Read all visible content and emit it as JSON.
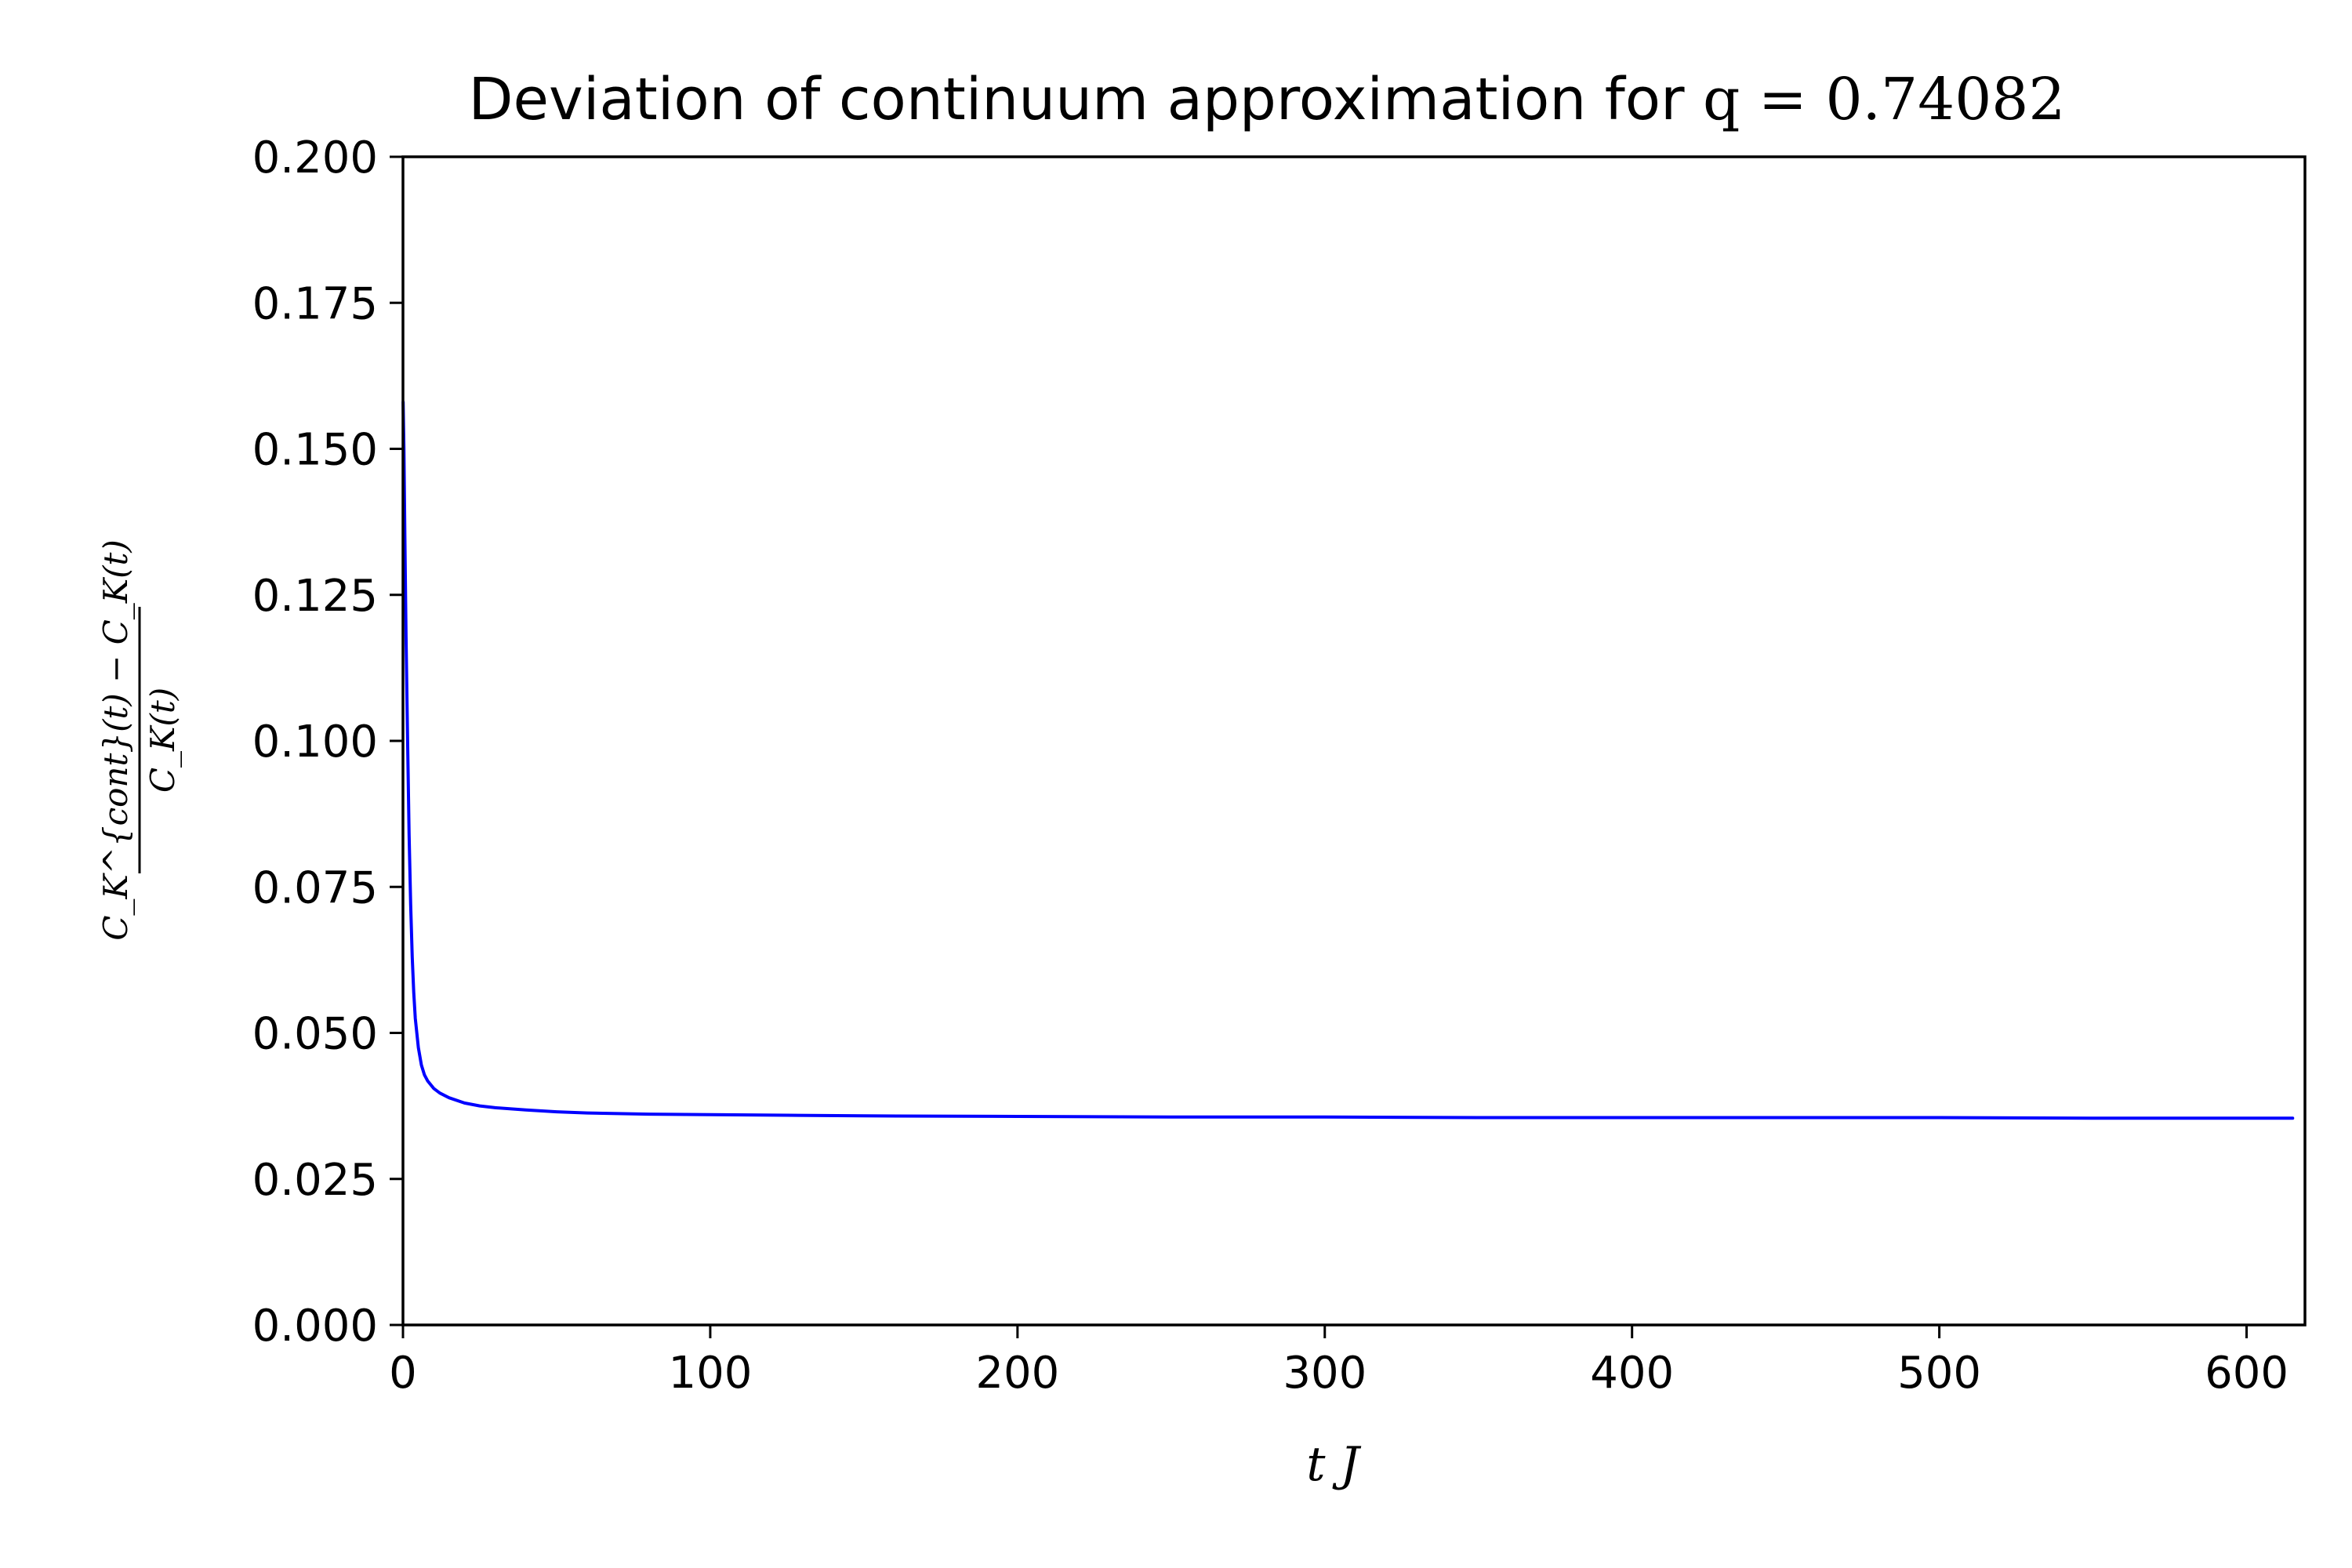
{
  "chart_data": {
    "type": "line",
    "title": "Deviation of continuum approximation for",
    "title_math": "q = 0.74082",
    "xlabel": "t J",
    "ylabel_numerator": "C_K^{cont}(t) − C_K(t)",
    "ylabel_denominator": "C_K(t)",
    "xlim": [
      0,
      619
    ],
    "ylim": [
      0,
      0.2
    ],
    "x_ticks": [
      0,
      100,
      200,
      300,
      400,
      500,
      600
    ],
    "x_tick_labels": [
      "0",
      "100",
      "200",
      "300",
      "400",
      "500",
      "600"
    ],
    "y_ticks": [
      0,
      0.025,
      0.05,
      0.075,
      0.1,
      0.125,
      0.15,
      0.175,
      0.2
    ],
    "y_tick_labels": [
      "0.000",
      "0.025",
      "0.050",
      "0.075",
      "0.100",
      "0.125",
      "0.150",
      "0.175",
      "0.200"
    ],
    "grid": false,
    "series": [
      {
        "color": "#0000ff",
        "x": [
          0.05,
          0.3,
          0.6,
          1,
          1.5,
          2,
          2.5,
          3,
          3.5,
          4,
          5,
          6,
          7,
          8,
          10,
          12,
          15,
          20,
          25,
          30,
          40,
          50,
          60,
          80,
          100,
          125,
          150,
          200,
          250,
          300,
          350,
          400,
          450,
          500,
          550,
          615
        ],
        "y": [
          0.158,
          0.15,
          0.135,
          0.118,
          0.1,
          0.084,
          0.072,
          0.063,
          0.057,
          0.0525,
          0.0475,
          0.0445,
          0.0428,
          0.0418,
          0.0405,
          0.0397,
          0.0389,
          0.038,
          0.0375,
          0.0372,
          0.0368,
          0.0365,
          0.0363,
          0.0361,
          0.036,
          0.0359,
          0.0358,
          0.0357,
          0.0356,
          0.0356,
          0.0355,
          0.0355,
          0.0355,
          0.0355,
          0.0354,
          0.0354
        ]
      }
    ]
  }
}
